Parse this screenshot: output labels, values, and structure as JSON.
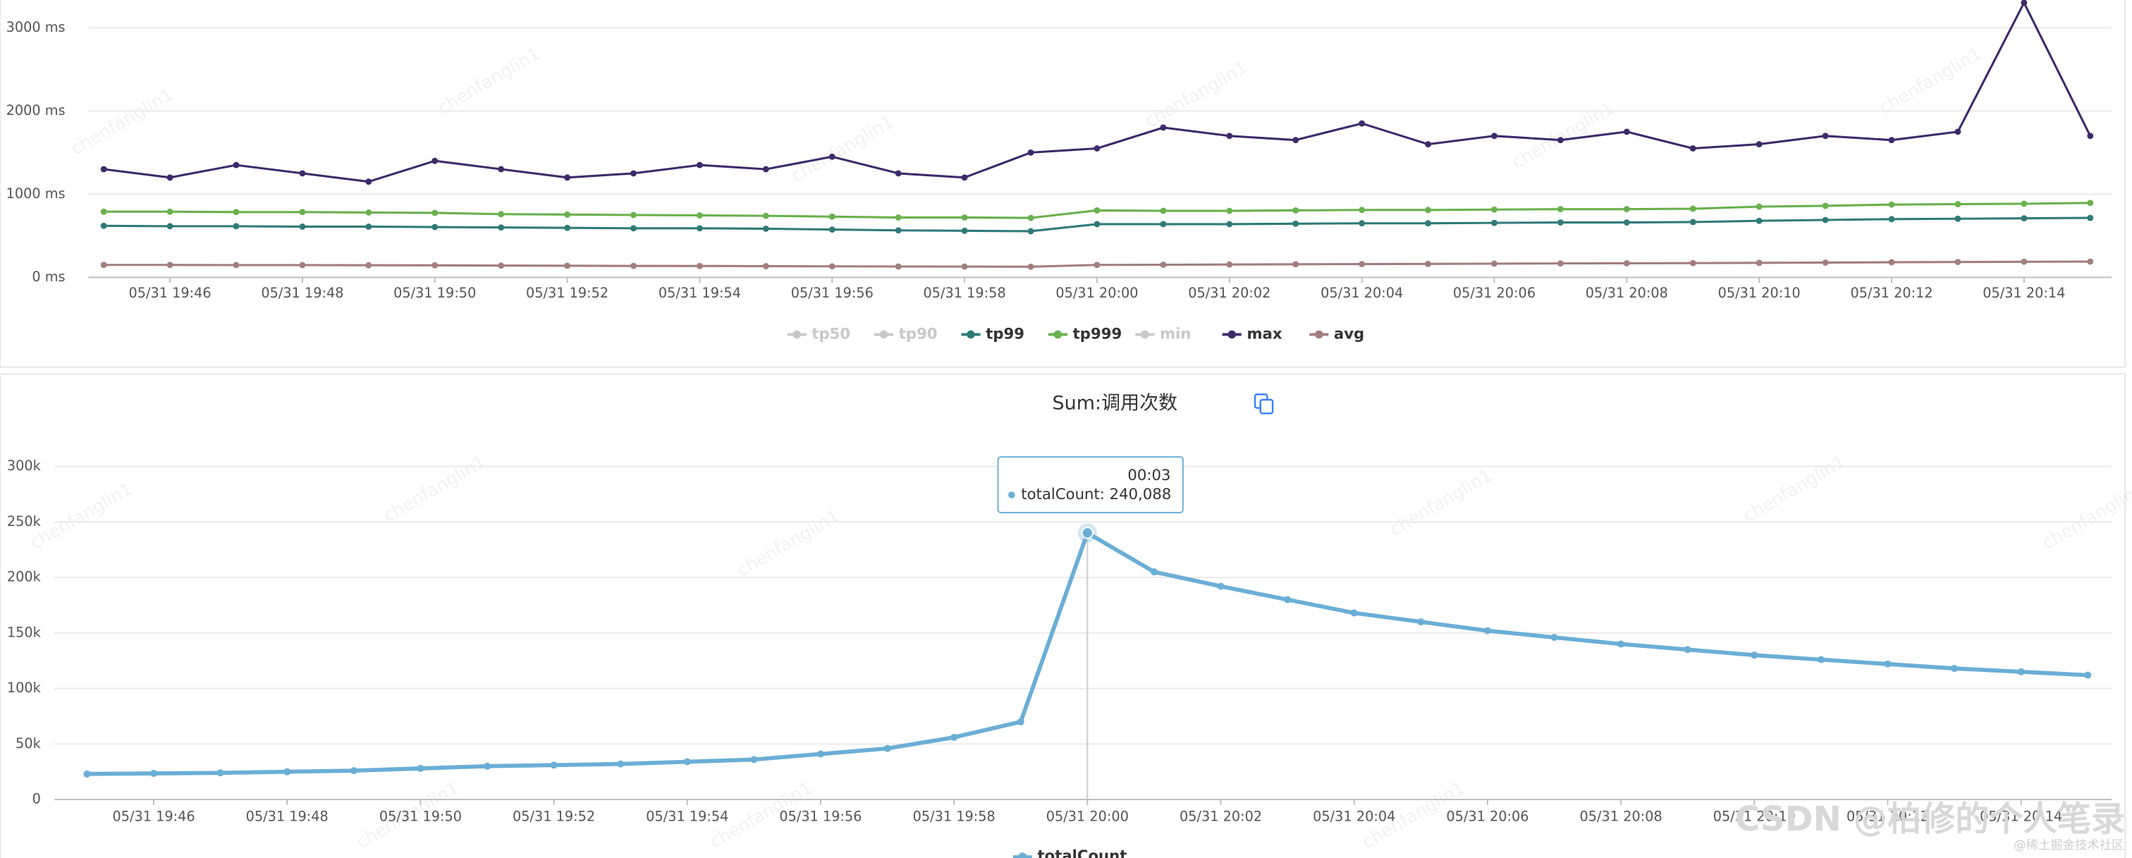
{
  "watermark": "chenfanglin1",
  "footer_watermark": "CSDN @柏修的个人笔录",
  "footer_small": "@稀土掘金技术社区",
  "chart_data": [
    {
      "type": "line",
      "x": [
        "05/31 19:45",
        "05/31 19:46",
        "05/31 19:47",
        "05/31 19:48",
        "05/31 19:49",
        "05/31 19:50",
        "05/31 19:51",
        "05/31 19:52",
        "05/31 19:53",
        "05/31 19:54",
        "05/31 19:55",
        "05/31 19:56",
        "05/31 19:57",
        "05/31 19:58",
        "05/31 19:59",
        "05/31 20:00",
        "05/31 20:01",
        "05/31 20:02",
        "05/31 20:03",
        "05/31 20:04",
        "05/31 20:05",
        "05/31 20:06",
        "05/31 20:07",
        "05/31 20:08",
        "05/31 20:09",
        "05/31 20:10",
        "05/31 20:11",
        "05/31 20:12",
        "05/31 20:13",
        "05/31 20:14",
        "05/31 20:15"
      ],
      "xticks": [
        "05/31 19:46",
        "05/31 19:48",
        "05/31 19:50",
        "05/31 19:52",
        "05/31 19:54",
        "05/31 19:56",
        "05/31 19:58",
        "05/31 20:00",
        "05/31 20:02",
        "05/31 20:04",
        "05/31 20:06",
        "05/31 20:08",
        "05/31 20:10",
        "05/31 20:12",
        "05/31 20:14"
      ],
      "ylim": [
        0,
        3300
      ],
      "yticks": [
        {
          "value": 0,
          "label": "0 ms"
        },
        {
          "value": 1000,
          "label": "1000 ms"
        },
        {
          "value": 2000,
          "label": "2000 ms"
        },
        {
          "value": 3000,
          "label": "3000 ms"
        }
      ],
      "grid": true,
      "legend": "bottom",
      "series": [
        {
          "name": "tp50",
          "color": "#c8c8c8",
          "visible": false
        },
        {
          "name": "tp90",
          "color": "#c8c8c8",
          "visible": false
        },
        {
          "name": "tp99",
          "color": "#2f7a78",
          "visible": true,
          "values": [
            620,
            615,
            615,
            610,
            610,
            605,
            600,
            595,
            590,
            590,
            585,
            575,
            565,
            560,
            555,
            640,
            640,
            640,
            645,
            650,
            650,
            655,
            660,
            660,
            665,
            680,
            690,
            700,
            705,
            710,
            715
          ]
        },
        {
          "name": "tp999",
          "color": "#6ab04c",
          "visible": true,
          "values": [
            790,
            790,
            785,
            785,
            780,
            775,
            760,
            755,
            750,
            745,
            740,
            730,
            720,
            720,
            715,
            805,
            800,
            800,
            805,
            810,
            810,
            815,
            820,
            820,
            825,
            850,
            860,
            875,
            880,
            885,
            895
          ]
        },
        {
          "name": "min",
          "color": "#c8c8c8",
          "visible": false
        },
        {
          "name": "max",
          "color": "#3d2a6b",
          "visible": true,
          "values": [
            1300,
            1200,
            1350,
            1250,
            1150,
            1400,
            1300,
            1200,
            1250,
            1350,
            1300,
            1450,
            1250,
            1200,
            1500,
            1550,
            1800,
            1700,
            1650,
            1850,
            1600,
            1700,
            1650,
            1750,
            1550,
            1600,
            1700,
            1650,
            1750,
            3300,
            1700
          ]
        },
        {
          "name": "avg",
          "color": "#a27d7d",
          "visible": true,
          "values": [
            150,
            150,
            148,
            148,
            146,
            145,
            142,
            140,
            138,
            137,
            135,
            133,
            131,
            130,
            128,
            150,
            152,
            155,
            158,
            160,
            162,
            165,
            168,
            170,
            172,
            175,
            178,
            182,
            185,
            188,
            190
          ]
        }
      ]
    },
    {
      "type": "line",
      "title": "Sum:调用次数",
      "x": [
        "05/31 19:45",
        "05/31 19:46",
        "05/31 19:47",
        "05/31 19:48",
        "05/31 19:49",
        "05/31 19:50",
        "05/31 19:51",
        "05/31 19:52",
        "05/31 19:53",
        "05/31 19:54",
        "05/31 19:55",
        "05/31 19:56",
        "05/31 19:57",
        "05/31 19:58",
        "05/31 19:59",
        "05/31 20:00",
        "05/31 20:01",
        "05/31 20:02",
        "05/31 20:03",
        "05/31 20:04",
        "05/31 20:05",
        "05/31 20:06",
        "05/31 20:07",
        "05/31 20:08",
        "05/31 20:09",
        "05/31 20:10",
        "05/31 20:11",
        "05/31 20:12",
        "05/31 20:13",
        "05/31 20:14",
        "05/31 20:15"
      ],
      "xticks": [
        "05/31 19:46",
        "05/31 19:48",
        "05/31 19:50",
        "05/31 19:52",
        "05/31 19:54",
        "05/31 19:56",
        "05/31 19:58",
        "05/31 20:00",
        "05/31 20:02",
        "05/31 20:04",
        "05/31 20:06",
        "05/31 20:08",
        "05/31 20:10",
        "05/31 20:12",
        "05/31 20:14"
      ],
      "ylim": [
        0,
        300000
      ],
      "yticks": [
        0,
        {
          "value": 50000,
          "label": "50k"
        },
        {
          "value": 100000,
          "label": "100k"
        },
        {
          "value": 150000,
          "label": "150k"
        },
        {
          "value": 200000,
          "label": "200k"
        },
        {
          "value": 250000,
          "label": "250k"
        },
        {
          "value": 300000,
          "label": "300k"
        }
      ],
      "grid": true,
      "legend": "bottom",
      "series": [
        {
          "name": "totalCount",
          "color": "#6aaed6",
          "visible": true,
          "values": [
            23000,
            23500,
            24000,
            25000,
            26000,
            28000,
            30000,
            31000,
            32000,
            34000,
            36000,
            41000,
            46000,
            56000,
            70000,
            240088,
            205000,
            192000,
            180000,
            168000,
            160000,
            152000,
            146000,
            140000,
            135000,
            130000,
            126000,
            122000,
            118000,
            115000,
            112000
          ]
        }
      ],
      "tooltip": {
        "title": "00:03",
        "text": "totalCount: 240,088",
        "index": 15
      }
    }
  ]
}
